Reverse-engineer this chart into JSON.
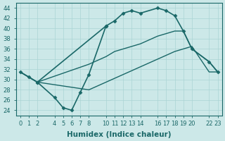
{
  "xlabel": "Humidex (Indice chaleur)",
  "bg_color": "#cce8e8",
  "line_color": "#1a6868",
  "grid_color": "#aad4d4",
  "xlim": [
    -0.5,
    23.5
  ],
  "ylim": [
    23,
    45
  ],
  "xticks": [
    0,
    1,
    2,
    4,
    5,
    6,
    7,
    8,
    10,
    11,
    12,
    13,
    14,
    16,
    17,
    18,
    19,
    20,
    22,
    23
  ],
  "yticks": [
    24,
    26,
    28,
    30,
    32,
    34,
    36,
    38,
    40,
    42,
    44
  ],
  "tick_label_fontsize": 6.0,
  "xlabel_fontsize": 7.5,
  "lines": [
    {
      "x": [
        0,
        1,
        2,
        10,
        11,
        12,
        13,
        14,
        16,
        17,
        18,
        19,
        20,
        22,
        23
      ],
      "y": [
        31.5,
        30.5,
        29.5,
        40.5,
        41.5,
        43.0,
        43.5,
        43.0,
        44.0,
        43.5,
        42.5,
        39.5,
        36.0,
        33.5,
        31.5
      ],
      "marker": "D",
      "markersize": 2.5,
      "linewidth": 1.2
    },
    {
      "x": [
        0,
        1,
        2,
        8,
        10,
        11,
        12,
        13,
        14,
        16,
        17,
        18,
        19,
        20,
        22,
        23
      ],
      "y": [
        31.5,
        30.5,
        29.5,
        33.0,
        34.5,
        35.5,
        36.0,
        36.5,
        37.0,
        38.5,
        39.0,
        39.5,
        39.5,
        36.0,
        33.5,
        31.5
      ],
      "marker": null,
      "markersize": 0,
      "linewidth": 1.0
    },
    {
      "x": [
        0,
        1,
        2,
        8,
        10,
        12,
        14,
        16,
        18,
        20,
        22,
        23
      ],
      "y": [
        31.5,
        30.5,
        29.5,
        28.0,
        29.5,
        31.0,
        32.5,
        34.0,
        35.5,
        36.5,
        31.5,
        31.5
      ],
      "marker": null,
      "markersize": 0,
      "linewidth": 1.0
    },
    {
      "x": [
        2,
        4,
        5,
        6,
        7,
        8,
        10
      ],
      "y": [
        29.5,
        26.5,
        24.5,
        24.0,
        27.5,
        31.0,
        40.5
      ],
      "marker": "D",
      "markersize": 2.5,
      "linewidth": 1.2
    }
  ]
}
